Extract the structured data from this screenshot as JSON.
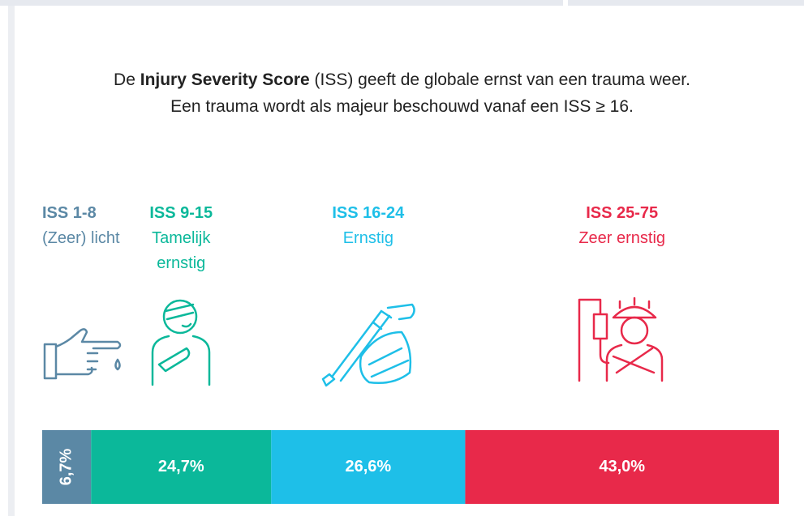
{
  "chart_data": {
    "type": "stacked-bar",
    "intro": [
      [
        "De ",
        "Injury Severity Score",
        " (ISS) geeft de globale ernst van een trauma weer."
      ],
      [
        "Een trauma wordt als majeur beschouwd vanaf een ISS ≥ 16."
      ]
    ],
    "series": [
      {
        "name": "ISS 1-8",
        "description": "(Zeer) licht",
        "color": "#5b88a5",
        "values": [
          6.7
        ],
        "value_labels": [
          "6,7%"
        ]
      },
      {
        "name": "ISS 9-15",
        "description": "Tamelijk ernstig",
        "color": "#0bb89a",
        "values": [
          24.7
        ],
        "value_labels": [
          "24,7%"
        ]
      },
      {
        "name": "ISS 16-24",
        "description": "Ernstig",
        "color": "#1ebfe8",
        "values": [
          26.6
        ],
        "value_labels": [
          "26,6%"
        ]
      },
      {
        "name": "ISS 25-75",
        "description": "Zeer ernstig",
        "color": "#e8294a",
        "values": [
          43.0
        ],
        "value_labels": [
          "43,0%"
        ]
      }
    ]
  }
}
